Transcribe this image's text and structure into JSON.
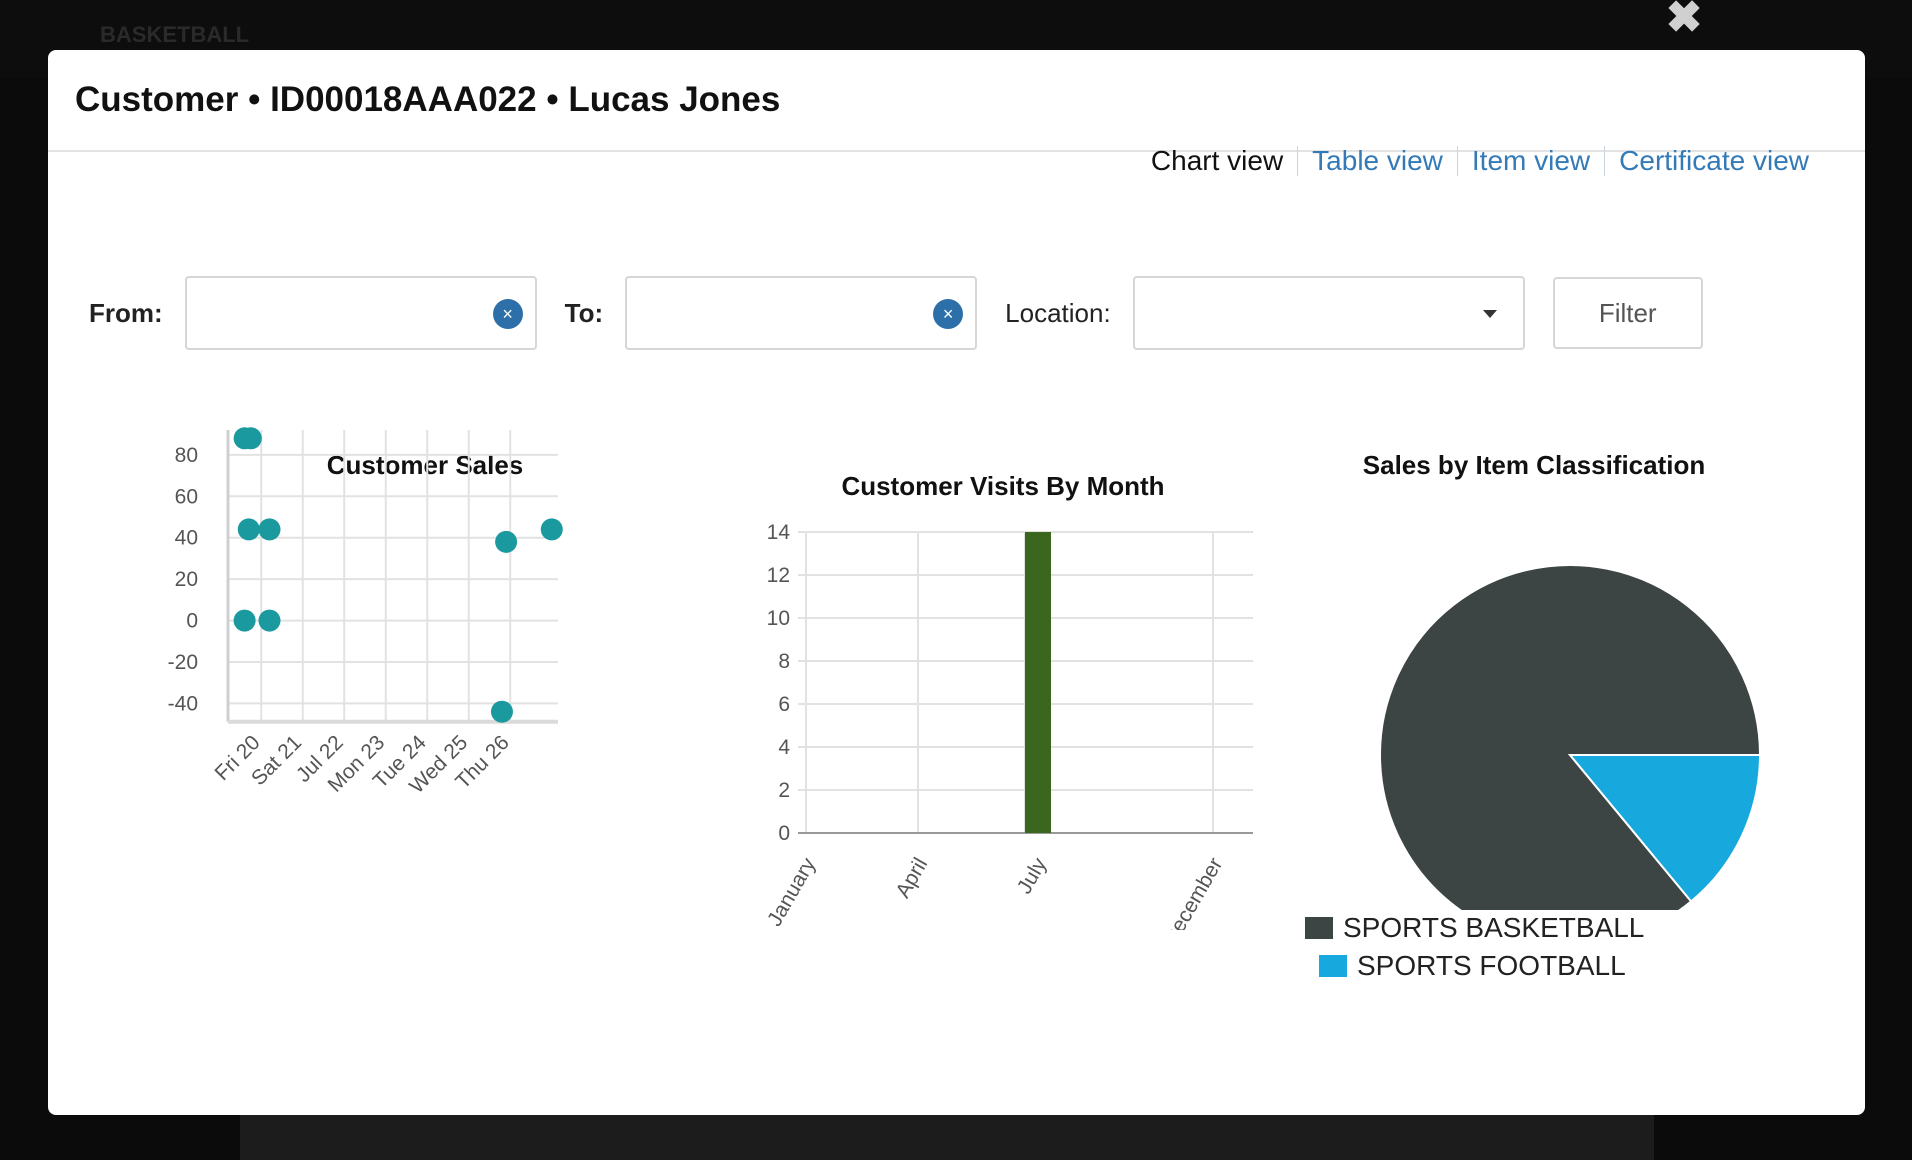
{
  "background": {
    "page_text": "BASKETBALL",
    "close_icon": "close-icon"
  },
  "modal": {
    "title": "Customer • ID00018AAA022 • Lucas Jones"
  },
  "views": {
    "chart": "Chart view",
    "table": "Table view",
    "item": "Item view",
    "certificate": "Certificate view"
  },
  "filters": {
    "from_label": "From:",
    "from_value": "",
    "to_label": "To:",
    "to_value": "",
    "location_label": "Location:",
    "location_value": "",
    "filter_label": "Filter",
    "clear_icon": "×"
  },
  "colors": {
    "scatter": "#1a9a9e",
    "bar": "#3b661e",
    "basketball": "#3d4444",
    "football": "#17a8de",
    "link": "#337ab7"
  },
  "chart_data": [
    {
      "type": "scatter",
      "title": "Customer Sales",
      "xlabel": "",
      "ylabel": "",
      "x_tick_labels": [
        "Fri 20",
        "Sat 21",
        "Jul 22",
        "Mon 23",
        "Tue 24",
        "Wed 25",
        "Thu 26"
      ],
      "y_ticks": [
        80,
        60,
        40,
        20,
        0,
        -20,
        -40
      ],
      "ylim": [
        -44,
        88
      ],
      "grid": true,
      "points": [
        {
          "x": 19.9,
          "y": 88
        },
        {
          "x": 20.05,
          "y": 88
        },
        {
          "x": 20.0,
          "y": 44
        },
        {
          "x": 20.5,
          "y": 44
        },
        {
          "x": 19.9,
          "y": 0
        },
        {
          "x": 20.5,
          "y": 0
        },
        {
          "x": 26.2,
          "y": 38
        },
        {
          "x": 26.1,
          "y": -44
        },
        {
          "x": 27.3,
          "y": 44
        }
      ]
    },
    {
      "type": "bar",
      "title": "Customer Visits By Month",
      "xlabel": "",
      "ylabel": "",
      "categories": [
        "January",
        "April",
        "July",
        "December"
      ],
      "values": [
        0,
        0,
        14,
        0
      ],
      "y_ticks": [
        14,
        12,
        10,
        8,
        6,
        4,
        2,
        0
      ],
      "ylim": [
        0,
        14
      ],
      "grid": true
    },
    {
      "type": "pie",
      "title": "Sales by Item Classification",
      "slices": [
        {
          "label": "SPORTS BASKETBALL",
          "value": 86
        },
        {
          "label": "SPORTS FOOTBALL",
          "value": 14
        }
      ],
      "legend": "bottom"
    }
  ]
}
